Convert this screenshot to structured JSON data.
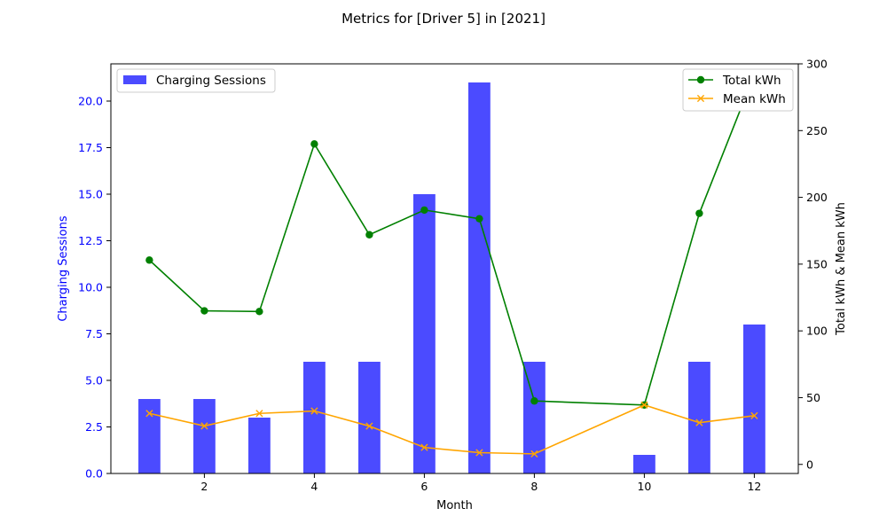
{
  "chart_data": {
    "type": "bar",
    "title": "Metrics for [Driver 5] in [2021]",
    "xlabel": "Month",
    "ylabel_left": "Charging Sessions",
    "ylabel_right": "Total kWh & Mean kWh",
    "xlim": [
      0.3,
      12.8
    ],
    "ylim_left": [
      0,
      22
    ],
    "ylim_right": [
      -6.8,
      300
    ],
    "x_ticks": [
      2,
      4,
      6,
      8,
      10,
      12
    ],
    "y_left_ticks": [
      0.0,
      2.5,
      5.0,
      7.5,
      10.0,
      12.5,
      15.0,
      17.5,
      20.0
    ],
    "y_left_tick_labels": [
      "0.0",
      "2.5",
      "5.0",
      "7.5",
      "10.0",
      "12.5",
      "15.0",
      "17.5",
      "20.0"
    ],
    "y_right_ticks": [
      0,
      50,
      100,
      150,
      200,
      250,
      300
    ],
    "colors": {
      "bars": "#4b4bff",
      "left_axis": "#0000ff",
      "total_kwh": "#008000",
      "mean_kwh": "#ffa500",
      "axis": "#000000"
    },
    "bar_series": {
      "name": "Charging Sessions",
      "x": [
        1,
        2,
        3,
        4,
        5,
        6,
        7,
        8,
        10,
        11,
        12
      ],
      "values": [
        4,
        4,
        3,
        6,
        6,
        15,
        21,
        6,
        1,
        6,
        8
      ]
    },
    "line_series": [
      {
        "name": "Total kWh",
        "marker": "circle",
        "x": [
          1,
          2,
          3,
          4,
          5,
          6,
          7,
          8,
          10,
          11,
          12
        ],
        "values": [
          153,
          115,
          114.5,
          240,
          172,
          190.5,
          184,
          47.5,
          44.5,
          188,
          292
        ]
      },
      {
        "name": "Mean kWh",
        "marker": "x",
        "x": [
          1,
          2,
          3,
          4,
          5,
          6,
          7,
          8,
          10,
          11,
          12
        ],
        "values": [
          38.2,
          28.8,
          38.2,
          40,
          28.7,
          12.7,
          8.8,
          7.9,
          44.5,
          31.3,
          36.5
        ]
      }
    ],
    "legend_left_position": "top-left",
    "legend_right_position": "top-right",
    "grid": false
  }
}
